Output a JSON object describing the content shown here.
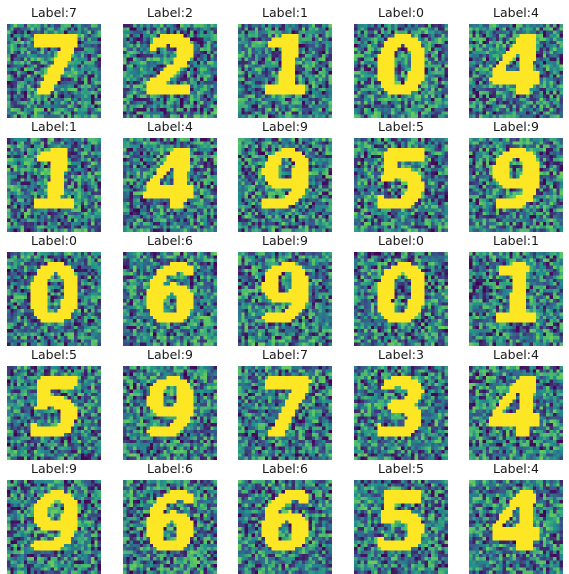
{
  "figure": {
    "label_prefix": "Label:",
    "colormap": {
      "name": "viridis",
      "stops": [
        "#440154",
        "#3b528b",
        "#21918c",
        "#5ec962",
        "#fde725"
      ],
      "digit_color": "#fde725"
    },
    "rows": 5,
    "cols": 5,
    "labels": [
      "Label:7",
      "Label:2",
      "Label:1",
      "Label:0",
      "Label:4",
      "Label:1",
      "Label:4",
      "Label:9",
      "Label:5",
      "Label:9",
      "Label:0",
      "Label:6",
      "Label:9",
      "Label:0",
      "Label:1",
      "Label:5",
      "Label:9",
      "Label:7",
      "Label:3",
      "Label:4",
      "Label:9",
      "Label:6",
      "Label:6",
      "Label:5",
      "Label:4"
    ]
  }
}
